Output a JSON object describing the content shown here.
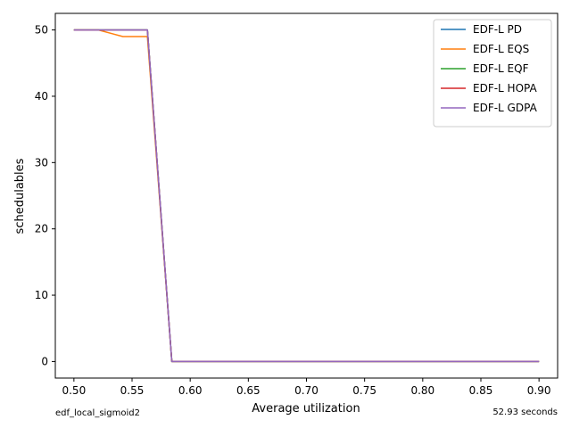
{
  "footer": {
    "left_note": "edf_local_sigmoid2",
    "right_note": "52.93 seconds"
  },
  "chart_data": {
    "type": "line",
    "xlabel": "Average utilization",
    "ylabel": "schedulables",
    "xlim": [
      0.484,
      0.916
    ],
    "ylim": [
      -2.5,
      52.5
    ],
    "xticks": [
      "0.50",
      "0.55",
      "0.60",
      "0.65",
      "0.70",
      "0.75",
      "0.80",
      "0.85",
      "0.90"
    ],
    "yticks": [
      "0",
      "10",
      "20",
      "30",
      "40",
      "50"
    ],
    "grid": false,
    "legend_position": "top-right",
    "x": [
      0.5,
      0.5211,
      0.5421,
      0.5632,
      0.5842,
      0.6053,
      0.6263,
      0.6474,
      0.6684,
      0.6895,
      0.7105,
      0.7316,
      0.7526,
      0.7737,
      0.7947,
      0.8158,
      0.8368,
      0.8579,
      0.8789,
      0.9
    ],
    "series": [
      {
        "name": "EDF-L PD",
        "color": "#1f77b4",
        "values": [
          50,
          50,
          50,
          50,
          0,
          0,
          0,
          0,
          0,
          0,
          0,
          0,
          0,
          0,
          0,
          0,
          0,
          0,
          0,
          0
        ]
      },
      {
        "name": "EDF-L EQS",
        "color": "#ff7f0e",
        "values": [
          50,
          50,
          49,
          49,
          0,
          0,
          0,
          0,
          0,
          0,
          0,
          0,
          0,
          0,
          0,
          0,
          0,
          0,
          0,
          0
        ]
      },
      {
        "name": "EDF-L EQF",
        "color": "#2ca02c",
        "values": [
          50,
          50,
          50,
          50,
          0,
          0,
          0,
          0,
          0,
          0,
          0,
          0,
          0,
          0,
          0,
          0,
          0,
          0,
          0,
          0
        ]
      },
      {
        "name": "EDF-L HOPA",
        "color": "#d62728",
        "values": [
          50,
          50,
          50,
          50,
          0,
          0,
          0,
          0,
          0,
          0,
          0,
          0,
          0,
          0,
          0,
          0,
          0,
          0,
          0,
          0
        ]
      },
      {
        "name": "EDF-L GDPA",
        "color": "#9467bd",
        "values": [
          50,
          50,
          50,
          50,
          0,
          0,
          0,
          0,
          0,
          0,
          0,
          0,
          0,
          0,
          0,
          0,
          0,
          0,
          0,
          0
        ]
      }
    ]
  }
}
